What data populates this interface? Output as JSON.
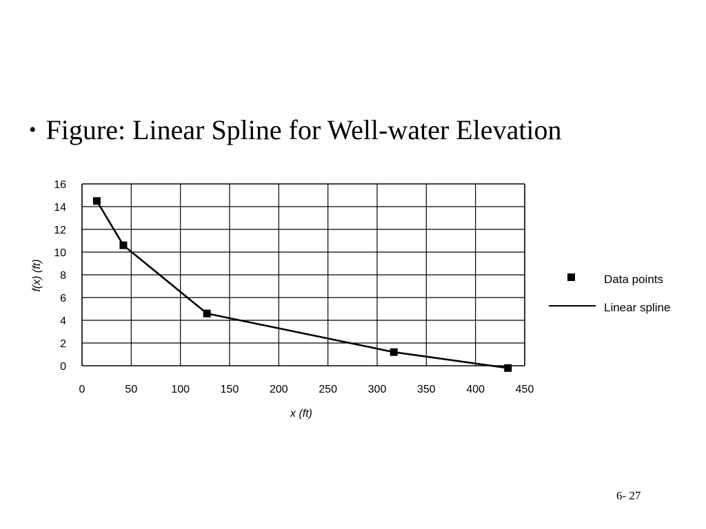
{
  "slide": {
    "bullet": "•",
    "title": "Figure: Linear Spline for Well-water Elevation",
    "page_number": "6- 27"
  },
  "chart_data": {
    "type": "line",
    "x_label": "x (ft)",
    "y_label": "f(x) (ft)",
    "xlim": [
      0,
      450
    ],
    "ylim": [
      0,
      16
    ],
    "x_ticks": [
      0,
      50,
      100,
      150,
      200,
      250,
      300,
      350,
      400,
      450
    ],
    "y_ticks": [
      0,
      2,
      4,
      6,
      8,
      10,
      12,
      14,
      16
    ],
    "grid": true,
    "legend_position": "right",
    "series": [
      {
        "name": "Data points",
        "style": "markers",
        "marker": "square",
        "points": [
          {
            "x": 15,
            "y": 14.5
          },
          {
            "x": 42,
            "y": 10.6
          },
          {
            "x": 127,
            "y": 4.6
          },
          {
            "x": 317,
            "y": 1.2
          },
          {
            "x": 433,
            "y": -0.2
          }
        ]
      },
      {
        "name": "Linear spline",
        "style": "line",
        "points": [
          {
            "x": 15,
            "y": 14.5
          },
          {
            "x": 42,
            "y": 10.6
          },
          {
            "x": 127,
            "y": 4.6
          },
          {
            "x": 317,
            "y": 1.2
          },
          {
            "x": 433,
            "y": -0.2
          }
        ]
      }
    ],
    "colors": {
      "line": "#000000",
      "marker": "#000000",
      "grid": "#000000"
    }
  }
}
